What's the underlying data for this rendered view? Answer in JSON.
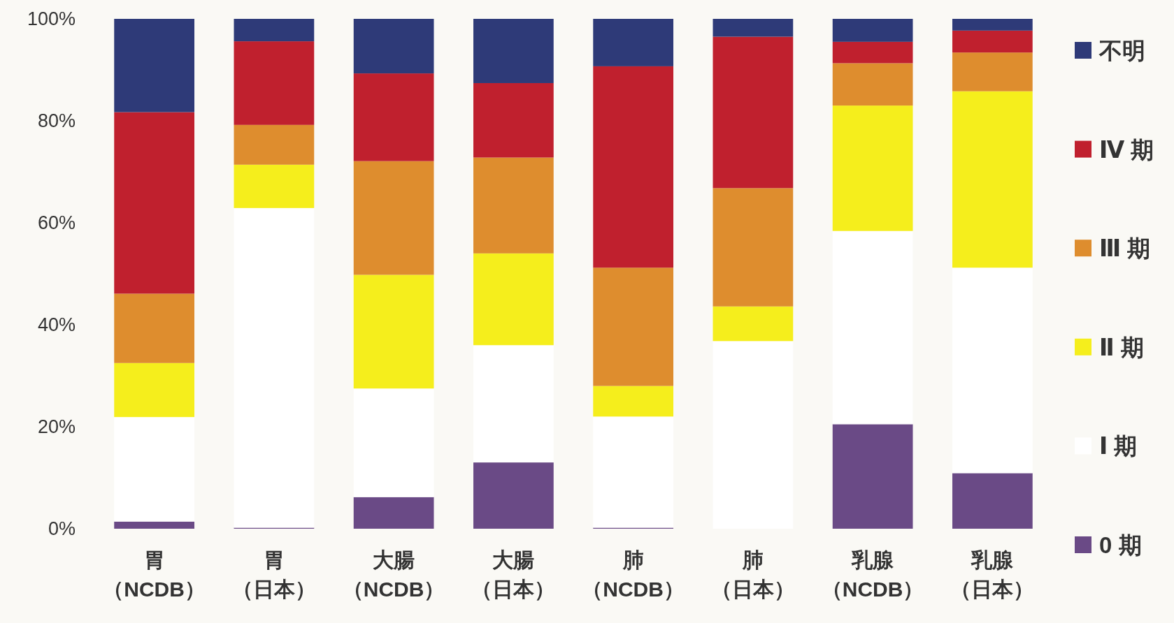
{
  "chart_data": {
    "type": "bar",
    "stacked": true,
    "categories": [
      "胃（NCDB）",
      "胃（日本）",
      "大腸（NCDB）",
      "大腸（日本）",
      "肺（NCDB）",
      "肺（日本）",
      "乳腺（NCDB）",
      "乳腺（日本）"
    ],
    "series": [
      {
        "name": "0 期",
        "color": "#6a4a86",
        "values": [
          1.4,
          0.2,
          6.2,
          13.0,
          0.2,
          0,
          20.5,
          10.9
        ]
      },
      {
        "name": "Ⅰ 期",
        "color": "#ffffff",
        "values": [
          20.5,
          62.7,
          21.3,
          23.0,
          21.8,
          36.8,
          37.9,
          40.3
        ]
      },
      {
        "name": "Ⅱ 期",
        "color": "#f5ee1c",
        "values": [
          10.6,
          8.5,
          22.3,
          18.0,
          6.0,
          6.8,
          24.6,
          34.6
        ]
      },
      {
        "name": "Ⅲ 期",
        "color": "#de8d2e",
        "values": [
          13.6,
          7.8,
          22.3,
          18.8,
          23.2,
          23.2,
          8.3,
          7.6
        ]
      },
      {
        "name": "Ⅳ 期",
        "color": "#c0202e",
        "values": [
          35.6,
          16.4,
          17.2,
          14.6,
          39.5,
          29.7,
          4.2,
          4.3
        ]
      },
      {
        "name": "不明",
        "color": "#2e3a78",
        "values": [
          18.3,
          4.4,
          10.7,
          12.6,
          9.3,
          3.5,
          4.5,
          2.3
        ]
      }
    ],
    "ylim": [
      0,
      100
    ],
    "yticks": [
      {
        "value": 0,
        "label": "0%"
      },
      {
        "value": 20,
        "label": "20%"
      },
      {
        "value": 40,
        "label": "40%"
      },
      {
        "value": 60,
        "label": "60%"
      },
      {
        "value": 80,
        "label": "80%"
      },
      {
        "value": 100,
        "label": "100%"
      }
    ],
    "legend": "right",
    "grid": false
  }
}
